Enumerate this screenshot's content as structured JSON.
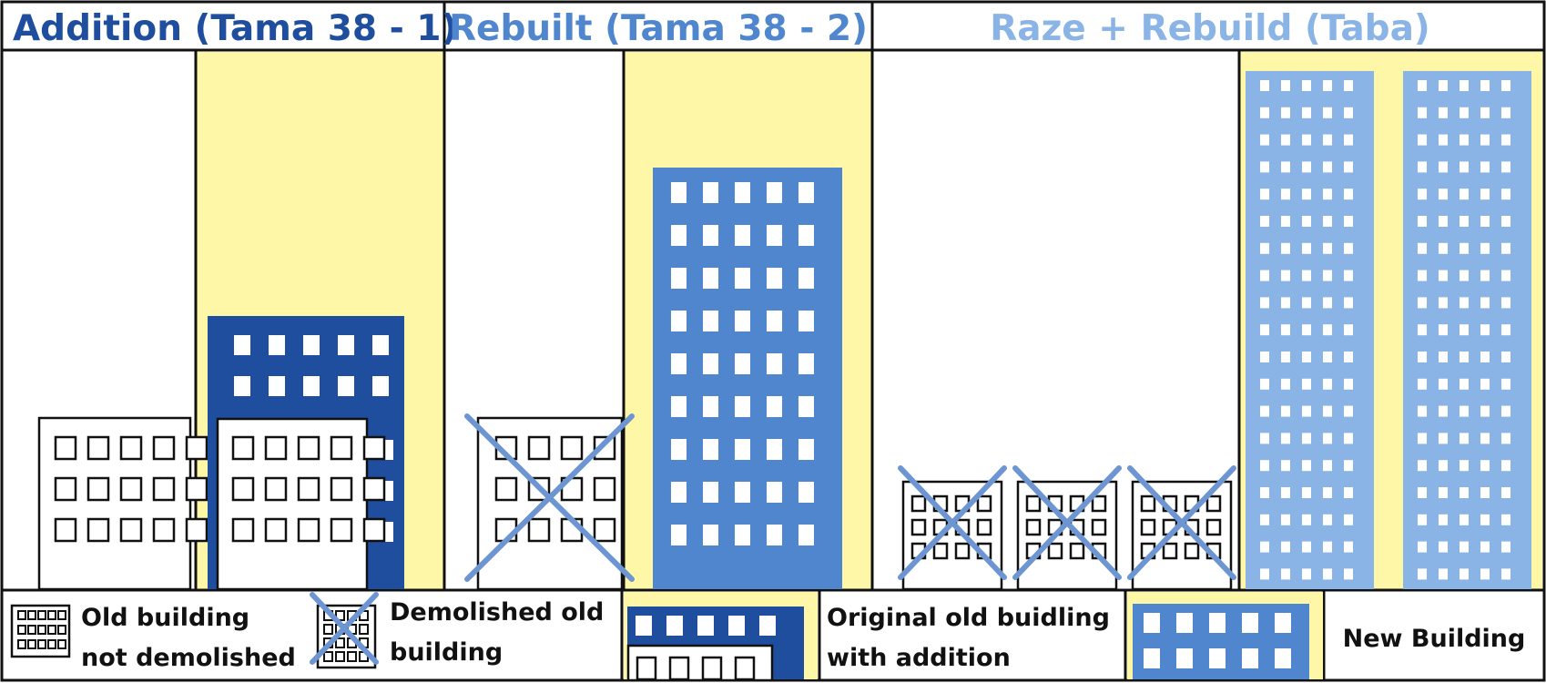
{
  "colors": {
    "dark_blue": "#1f4e9f",
    "mid_blue": "#4f86cd",
    "light_blue": "#8ab3e6",
    "yellow": "#fff7a8",
    "outline": "#111111",
    "cross_blue": "#6c95d2"
  },
  "sections": [
    {
      "title": "Addition (Tama 38 - 1)",
      "title_color": "#1f4e9f"
    },
    {
      "title": "Rebuilt (Tama 38 - 2)",
      "title_color": "#4f86cd"
    },
    {
      "title": "Raze + Rebuild (Taba)",
      "title_color": "#8ab3e6"
    }
  ],
  "legend": {
    "old_not_demolished": {
      "line1": "Old building",
      "line2": "not demolished"
    },
    "demolished_old": {
      "line1": "Demolished old",
      "line2": "building"
    },
    "original_with_addition": {
      "line1": "Original old buidling",
      "line2": "with addition"
    },
    "new_building": {
      "line1": "New Building"
    }
  }
}
